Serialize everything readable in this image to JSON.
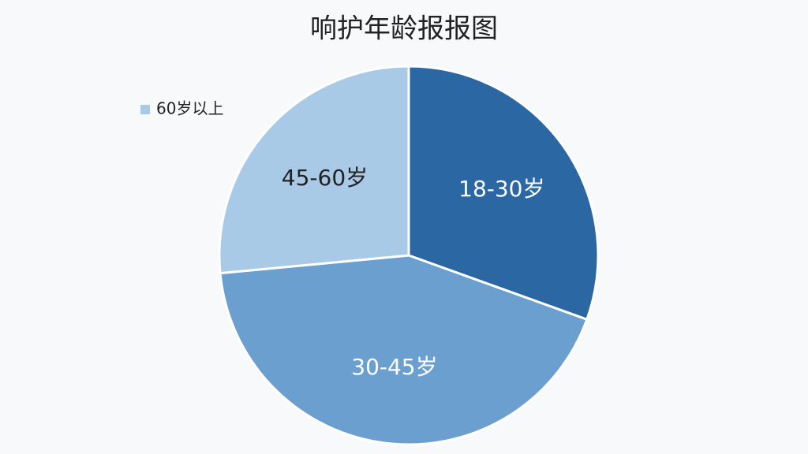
{
  "chart_data": {
    "type": "pie",
    "title": "响护年龄报报图",
    "categories": [
      "18-30岁",
      "30-45岁",
      "45-60岁",
      "60岁以上"
    ],
    "values": [
      30.5,
      43,
      26.5,
      0
    ],
    "colors": [
      "#2b67a3",
      "#6a9fcf",
      "#a9cae6",
      "#a9cae6"
    ],
    "label_colors": [
      "#ffffff",
      "#ffffff",
      "#222222",
      "#222222"
    ],
    "legend": "upper left"
  }
}
